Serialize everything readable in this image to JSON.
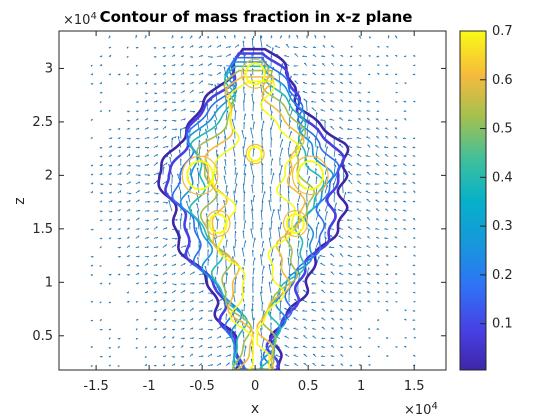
{
  "chart_data": {
    "type": "contour",
    "title": "Contour of mass fraction in x-z plane",
    "xlabel": "x",
    "ylabel": "z",
    "x_multiplier": "×10",
    "x_multiplier_exp": "4",
    "y_multiplier": "×10",
    "y_multiplier_exp": "4",
    "xlim": [
      -1.85,
      1.8
    ],
    "ylim": [
      0.18,
      3.35
    ],
    "xticks": [
      -1.5,
      -1,
      -0.5,
      0,
      0.5,
      1,
      1.5
    ],
    "xtick_labels": [
      "-1.5",
      "-1",
      "-0.5",
      "0",
      "0.5",
      "1",
      "1.5"
    ],
    "yticks": [
      0.5,
      1,
      1.5,
      2,
      2.5,
      3
    ],
    "ytick_labels": [
      "0.5",
      "1",
      "1.5",
      "2",
      "2.5",
      "3"
    ],
    "colorbar": {
      "limits": [
        0.005,
        0.7
      ],
      "ticks": [
        0.1,
        0.2,
        0.3,
        0.4,
        0.5,
        0.6,
        0.7
      ],
      "tick_labels": [
        "0.1",
        "0.2",
        "0.3",
        "0.4",
        "0.5",
        "0.6",
        "0.7"
      ],
      "colormap": "parula"
    },
    "overlay": "velocity quiver field",
    "plume": {
      "center_x": 0,
      "base_z": 0.18,
      "top_z": 3.2,
      "half_width_profile": [
        {
          "z": 0.18,
          "w": 0.2
        },
        {
          "z": 0.5,
          "w": 0.22
        },
        {
          "z": 0.8,
          "w": 0.35
        },
        {
          "z": 1.1,
          "w": 0.55
        },
        {
          "z": 1.4,
          "w": 0.7
        },
        {
          "z": 1.7,
          "w": 0.82
        },
        {
          "z": 2.0,
          "w": 0.88
        },
        {
          "z": 2.3,
          "w": 0.78
        },
        {
          "z": 2.55,
          "w": 0.55
        },
        {
          "z": 2.8,
          "w": 0.35
        },
        {
          "z": 3.0,
          "w": 0.25
        },
        {
          "z": 3.2,
          "w": 0.12
        }
      ],
      "contour_levels": [
        {
          "level": 0.01,
          "color": "#3e26a8"
        },
        {
          "level": 0.05,
          "color": "#4a3fe0"
        },
        {
          "level": 0.1,
          "color": "#2d6ff2"
        },
        {
          "level": 0.2,
          "color": "#1a93e0"
        },
        {
          "level": 0.35,
          "color": "#26bab3"
        },
        {
          "level": 0.5,
          "color": "#a4be50"
        },
        {
          "level": 0.6,
          "color": "#f5bb3b"
        },
        {
          "level": 0.7,
          "color": "#f9fb15"
        }
      ]
    },
    "quiver_color": "#1f77b4"
  }
}
